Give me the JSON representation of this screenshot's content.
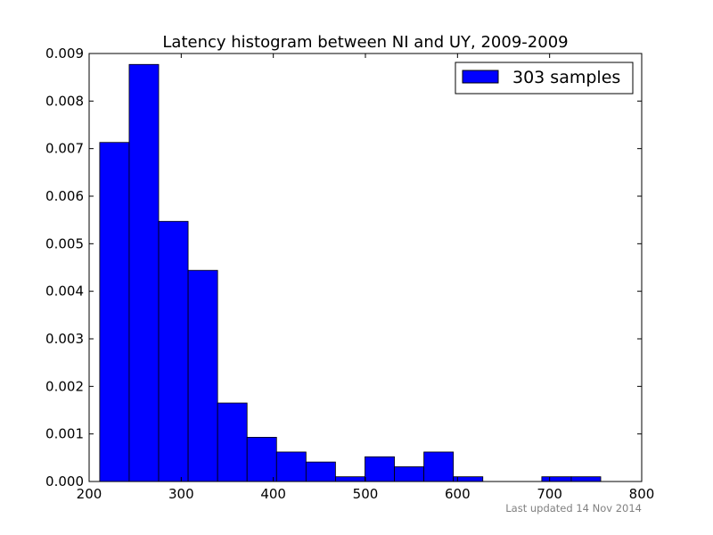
{
  "chart_data": {
    "type": "bar",
    "title": "Latency histogram between NI and UY, 2009-2009",
    "xlabel": "",
    "ylabel": "",
    "xlim": [
      200,
      800
    ],
    "ylim": [
      0,
      0.009
    ],
    "x_ticks": [
      "200",
      "300",
      "400",
      "500",
      "600",
      "700",
      "800"
    ],
    "y_ticks": [
      "0.000",
      "0.001",
      "0.002",
      "0.003",
      "0.004",
      "0.005",
      "0.006",
      "0.007",
      "0.008",
      "0.009"
    ],
    "grid": false,
    "legend_position": "top-right",
    "series": [
      {
        "name": "303 samples",
        "color": "#0000ff",
        "bins": [
          {
            "x0": 211.5,
            "x1": 243.5,
            "value": 0.00713
          },
          {
            "x0": 243.5,
            "x1": 275.5,
            "value": 0.00877
          },
          {
            "x0": 275.5,
            "x1": 307.5,
            "value": 0.00547
          },
          {
            "x0": 307.5,
            "x1": 339.5,
            "value": 0.00444
          },
          {
            "x0": 339.5,
            "x1": 371.5,
            "value": 0.00165
          },
          {
            "x0": 371.5,
            "x1": 403.5,
            "value": 0.00093
          },
          {
            "x0": 403.5,
            "x1": 435.5,
            "value": 0.00062
          },
          {
            "x0": 435.5,
            "x1": 467.5,
            "value": 0.00041
          },
          {
            "x0": 467.5,
            "x1": 499.5,
            "value": 0.0001
          },
          {
            "x0": 499.5,
            "x1": 531.5,
            "value": 0.00052
          },
          {
            "x0": 531.5,
            "x1": 563.5,
            "value": 0.00031
          },
          {
            "x0": 563.5,
            "x1": 595.5,
            "value": 0.00062
          },
          {
            "x0": 595.5,
            "x1": 627.5,
            "value": 0.0001
          },
          {
            "x0": 627.5,
            "x1": 659.5,
            "value": 0
          },
          {
            "x0": 659.5,
            "x1": 691.5,
            "value": 0
          },
          {
            "x0": 691.5,
            "x1": 723.5,
            "value": 0.0001
          },
          {
            "x0": 723.5,
            "x1": 755.5,
            "value": 0.0001
          }
        ]
      }
    ],
    "footer": "Last updated 14 Nov 2014"
  }
}
